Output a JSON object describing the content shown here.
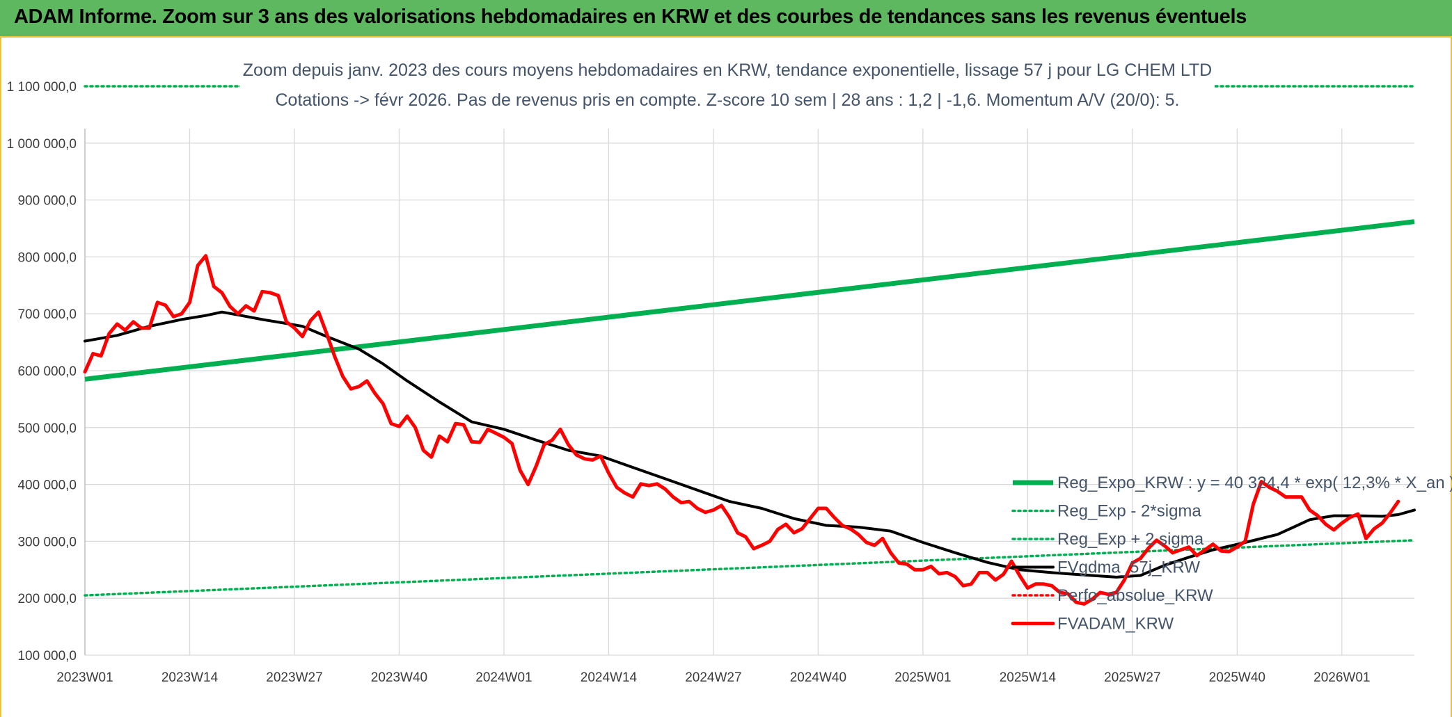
{
  "header": {
    "title": "ADAM Informe. Zoom sur 3 ans des valorisations hebdomadaires en KRW et des courbes de tendances sans les revenus éventuels"
  },
  "chart_data": {
    "type": "line",
    "subtitle_line1": "Zoom depuis janv. 2023 des cours moyens hebdomadaires en KRW, tendance exponentielle, lissage 57 j pour LG CHEM LTD",
    "subtitle_line2": "Cotations -> févr 2026. Pas de revenus pris en compte. Z-score 10 sem | 28 ans : 1,2 | -1,6. Momentum A/V (20/0): 5.",
    "ylim": [
      100000,
      1100000
    ],
    "y_ticks": [
      "100 000,0",
      "200 000,0",
      "300 000,0",
      "400 000,0",
      "500 000,0",
      "600 000,0",
      "700 000,0",
      "800 000,0",
      "900 000,0",
      "1 000 000,0",
      "1 100 000,0"
    ],
    "x_ticks": [
      "2023W01",
      "2023W14",
      "2023W27",
      "2023W40",
      "2024W01",
      "2024W14",
      "2024W27",
      "2024W40",
      "2025W01",
      "2025W14",
      "2025W27",
      "2025W40",
      "2026W01"
    ],
    "n_weeks": 166,
    "grid": true,
    "legend_position": "bottom-right",
    "series": [
      {
        "name": "Reg_Expo_KRW : y = 40 324,4 * exp( 12,3% *  X_an )",
        "color": "#00b050",
        "style": "solid",
        "points": [
          [
            0,
            585000
          ],
          [
            165,
            862000
          ]
        ]
      },
      {
        "name": "Reg_Exp - 2*sigma",
        "color": "#00b050",
        "style": "dotted",
        "points": [
          [
            0,
            205000
          ],
          [
            165,
            302000
          ]
        ]
      },
      {
        "name": "Reg_Exp + 2 sigma",
        "color": "#00b050",
        "style": "dotted",
        "points": [
          [
            0,
            1100000
          ],
          [
            165,
            1100000
          ]
        ]
      },
      {
        "name": "FVgdma_57j_KRW",
        "color": "#000000",
        "style": "solid",
        "points": [
          [
            0,
            652000
          ],
          [
            4,
            662000
          ],
          [
            8,
            678000
          ],
          [
            12,
            690000
          ],
          [
            15,
            697000
          ],
          [
            17,
            703000
          ],
          [
            19,
            698000
          ],
          [
            22,
            690000
          ],
          [
            25,
            683000
          ],
          [
            27,
            678000
          ],
          [
            30,
            660000
          ],
          [
            34,
            638000
          ],
          [
            37,
            612000
          ],
          [
            40,
            582000
          ],
          [
            44,
            545000
          ],
          [
            48,
            510000
          ],
          [
            52,
            497000
          ],
          [
            56,
            478000
          ],
          [
            60,
            460000
          ],
          [
            64,
            450000
          ],
          [
            68,
            430000
          ],
          [
            72,
            410000
          ],
          [
            76,
            390000
          ],
          [
            80,
            370000
          ],
          [
            84,
            358000
          ],
          [
            88,
            340000
          ],
          [
            92,
            328000
          ],
          [
            96,
            325000
          ],
          [
            100,
            318000
          ],
          [
            104,
            298000
          ],
          [
            108,
            280000
          ],
          [
            112,
            263000
          ],
          [
            116,
            250000
          ],
          [
            120,
            245000
          ],
          [
            124,
            241000
          ],
          [
            128,
            237000
          ],
          [
            131,
            240000
          ],
          [
            134,
            258000
          ],
          [
            137,
            272000
          ],
          [
            140,
            285000
          ],
          [
            144,
            298000
          ],
          [
            148,
            312000
          ],
          [
            150,
            325000
          ],
          [
            152,
            338000
          ],
          [
            155,
            345000
          ],
          [
            158,
            345000
          ],
          [
            161,
            344000
          ],
          [
            163,
            347000
          ],
          [
            165,
            355000
          ]
        ]
      },
      {
        "name": "Perfo_absolue_KRW",
        "color": "#ff0000",
        "style": "dotted",
        "points": []
      },
      {
        "name": "FVADAM_KRW",
        "color": "#ff0000",
        "style": "solid",
        "points": [
          [
            0,
            598000
          ],
          [
            1,
            630000
          ],
          [
            2,
            626000
          ],
          [
            3,
            665000
          ],
          [
            4,
            682000
          ],
          [
            5,
            671000
          ],
          [
            6,
            686000
          ],
          [
            7,
            675000
          ],
          [
            8,
            675000
          ],
          [
            9,
            720000
          ],
          [
            10,
            715000
          ],
          [
            11,
            695000
          ],
          [
            12,
            700000
          ],
          [
            13,
            720000
          ],
          [
            14,
            785000
          ],
          [
            15,
            802000
          ],
          [
            16,
            748000
          ],
          [
            17,
            737000
          ],
          [
            18,
            713000
          ],
          [
            19,
            700000
          ],
          [
            20,
            714000
          ],
          [
            21,
            705000
          ],
          [
            22,
            739000
          ],
          [
            23,
            737000
          ],
          [
            24,
            732000
          ],
          [
            25,
            686000
          ],
          [
            26,
            675000
          ],
          [
            27,
            660000
          ],
          [
            28,
            688000
          ],
          [
            29,
            703000
          ],
          [
            30,
            665000
          ],
          [
            31,
            625000
          ],
          [
            32,
            590000
          ],
          [
            33,
            568000
          ],
          [
            34,
            572000
          ],
          [
            35,
            582000
          ],
          [
            36,
            560000
          ],
          [
            37,
            542000
          ],
          [
            38,
            507000
          ],
          [
            39,
            502000
          ],
          [
            40,
            520000
          ],
          [
            41,
            500000
          ],
          [
            42,
            460000
          ],
          [
            43,
            448000
          ],
          [
            44,
            485000
          ],
          [
            45,
            475000
          ],
          [
            46,
            507000
          ],
          [
            47,
            505000
          ],
          [
            48,
            475000
          ],
          [
            49,
            474000
          ],
          [
            50,
            497000
          ],
          [
            51,
            490000
          ],
          [
            52,
            483000
          ],
          [
            53,
            472000
          ],
          [
            54,
            425000
          ],
          [
            55,
            400000
          ],
          [
            56,
            432000
          ],
          [
            57,
            470000
          ],
          [
            58,
            478000
          ],
          [
            59,
            497000
          ],
          [
            60,
            470000
          ],
          [
            61,
            452000
          ],
          [
            62,
            445000
          ],
          [
            63,
            443000
          ],
          [
            64,
            450000
          ],
          [
            65,
            420000
          ],
          [
            66,
            395000
          ],
          [
            67,
            385000
          ],
          [
            68,
            378000
          ],
          [
            69,
            401000
          ],
          [
            70,
            398000
          ],
          [
            71,
            401000
          ],
          [
            72,
            392000
          ],
          [
            73,
            378000
          ],
          [
            74,
            368000
          ],
          [
            75,
            370000
          ],
          [
            76,
            358000
          ],
          [
            77,
            351000
          ],
          [
            78,
            355000
          ],
          [
            79,
            363000
          ],
          [
            80,
            342000
          ],
          [
            81,
            315000
          ],
          [
            82,
            308000
          ],
          [
            83,
            287000
          ],
          [
            84,
            293000
          ],
          [
            85,
            300000
          ],
          [
            86,
            321000
          ],
          [
            87,
            330000
          ],
          [
            88,
            315000
          ],
          [
            89,
            322000
          ],
          [
            90,
            340000
          ],
          [
            91,
            358000
          ],
          [
            92,
            358000
          ],
          [
            93,
            342000
          ],
          [
            94,
            328000
          ],
          [
            95,
            322000
          ],
          [
            96,
            312000
          ],
          [
            97,
            298000
          ],
          [
            98,
            293000
          ],
          [
            99,
            305000
          ],
          [
            100,
            280000
          ],
          [
            101,
            262000
          ],
          [
            102,
            260000
          ],
          [
            103,
            250000
          ],
          [
            104,
            250000
          ],
          [
            105,
            256000
          ],
          [
            106,
            243000
          ],
          [
            107,
            245000
          ],
          [
            108,
            238000
          ],
          [
            109,
            222000
          ],
          [
            110,
            225000
          ],
          [
            111,
            245000
          ],
          [
            112,
            245000
          ],
          [
            113,
            232000
          ],
          [
            114,
            242000
          ],
          [
            115,
            265000
          ],
          [
            116,
            240000
          ],
          [
            117,
            218000
          ],
          [
            118,
            225000
          ],
          [
            119,
            225000
          ],
          [
            120,
            222000
          ],
          [
            121,
            210000
          ],
          [
            122,
            208000
          ],
          [
            123,
            193000
          ],
          [
            124,
            190000
          ],
          [
            125,
            198000
          ],
          [
            126,
            210000
          ],
          [
            127,
            207000
          ],
          [
            128,
            210000
          ],
          [
            129,
            232000
          ],
          [
            130,
            262000
          ],
          [
            131,
            270000
          ],
          [
            132,
            288000
          ],
          [
            133,
            302000
          ],
          [
            134,
            292000
          ],
          [
            135,
            280000
          ],
          [
            136,
            285000
          ],
          [
            137,
            290000
          ],
          [
            138,
            275000
          ],
          [
            139,
            285000
          ],
          [
            140,
            295000
          ],
          [
            141,
            283000
          ],
          [
            142,
            282000
          ],
          [
            143,
            290000
          ],
          [
            144,
            300000
          ],
          [
            145,
            365000
          ],
          [
            146,
            405000
          ],
          [
            147,
            395000
          ],
          [
            148,
            388000
          ],
          [
            149,
            378000
          ],
          [
            150,
            378000
          ],
          [
            151,
            378000
          ],
          [
            152,
            355000
          ],
          [
            153,
            345000
          ],
          [
            154,
            330000
          ],
          [
            155,
            320000
          ],
          [
            156,
            332000
          ],
          [
            157,
            342000
          ],
          [
            158,
            348000
          ],
          [
            159,
            305000
          ],
          [
            160,
            322000
          ],
          [
            161,
            332000
          ],
          [
            162,
            350000
          ],
          [
            163,
            370000
          ]
        ]
      }
    ]
  }
}
